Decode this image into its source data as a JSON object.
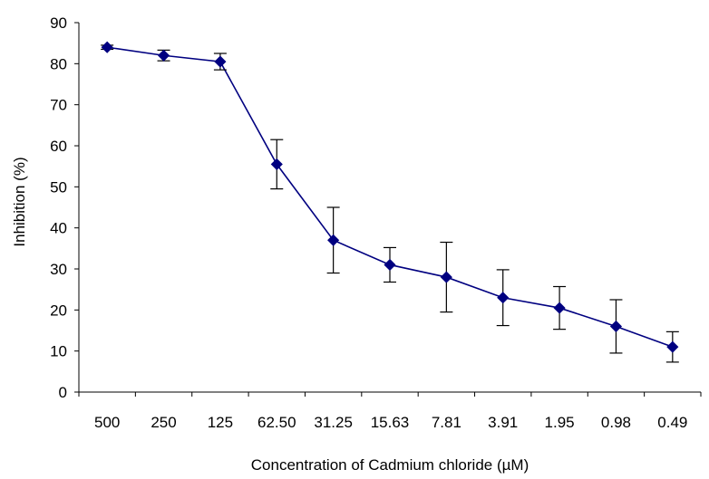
{
  "chart_data": {
    "type": "line",
    "title": "",
    "xlabel": "Concentration of Cadmium chloride (µM)",
    "ylabel": "Inhibition (%)",
    "categories": [
      "500",
      "250",
      "125",
      "62.50",
      "31.25",
      "15.63",
      "7.81",
      "3.91",
      "1.95",
      "0.98",
      "0.49"
    ],
    "ylim": [
      0,
      90
    ],
    "yticks": [
      "0",
      "10",
      "20",
      "30",
      "40",
      "50",
      "60",
      "70",
      "80",
      "90"
    ],
    "grid": false,
    "legend": "none",
    "series": [
      {
        "values": [
          84,
          82,
          80.5,
          55.5,
          37,
          31,
          28,
          23,
          20.5,
          16,
          11
        ],
        "error": [
          0.5,
          1.3,
          2,
          6,
          8,
          4.2,
          8.5,
          6.8,
          5.2,
          6.5,
          3.7
        ],
        "color": "#000080",
        "marker": "diamond"
      }
    ]
  }
}
